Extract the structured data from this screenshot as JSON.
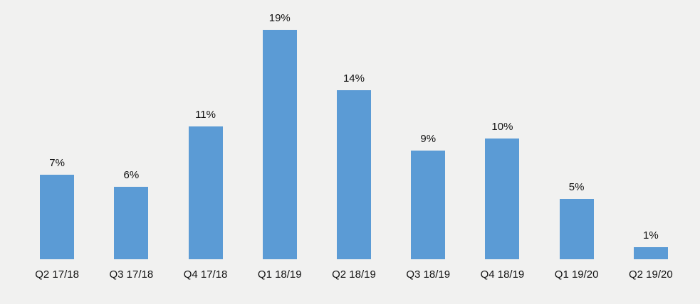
{
  "chart_data": {
    "type": "bar",
    "categories": [
      "Q2 17/18",
      "Q3 17/18",
      "Q4 17/18",
      "Q1 18/19",
      "Q2 18/19",
      "Q3 18/19",
      "Q4 18/19",
      "Q1 19/20",
      "Q2 19/20"
    ],
    "values": [
      7,
      6,
      11,
      19,
      14,
      9,
      10,
      5,
      1
    ],
    "value_labels": [
      "7%",
      "6%",
      "11%",
      "19%",
      "14%",
      "9%",
      "10%",
      "5%",
      "1%"
    ],
    "ylim": [
      0,
      20
    ],
    "grid": false,
    "legend": null,
    "axes_visible": false,
    "bar_color": "#5b9bd5",
    "background_color": "#f1f1f0",
    "label_color": "#111111"
  }
}
